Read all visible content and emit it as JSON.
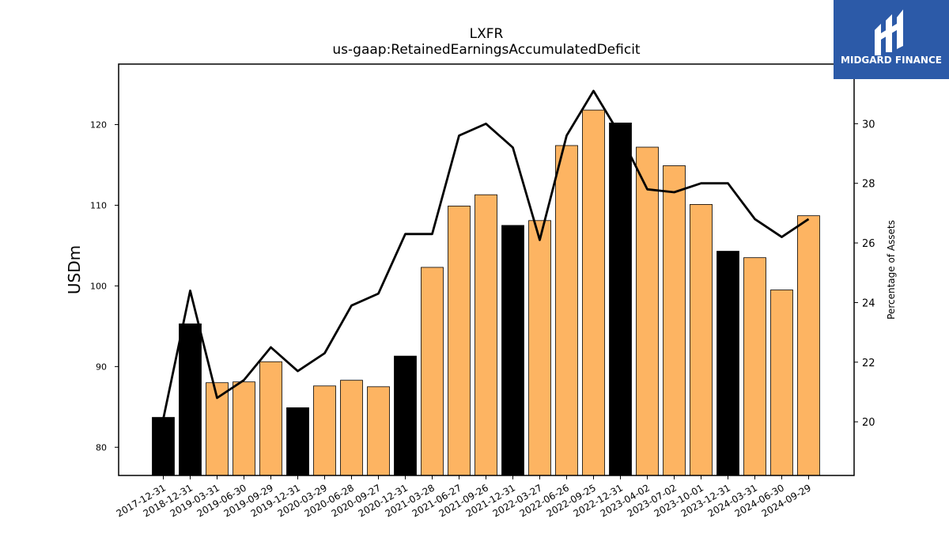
{
  "logo": {
    "text": "MIDGARD FINANCE",
    "color": "#2c5aa8"
  },
  "chart_data": {
    "type": "bar",
    "title": "LXFR",
    "subtitle": "us-gaap:RetainedEarningsAccumulatedDeficit",
    "ylabel": "USDm",
    "y2label": "Percentage of Assets",
    "ylim": [
      76.5,
      127.5
    ],
    "y2lim": [
      18.2,
      32.0
    ],
    "yticks": [
      80,
      90,
      100,
      110,
      120
    ],
    "y2ticks": [
      20,
      22,
      24,
      26,
      28,
      30
    ],
    "grid": false,
    "categories": [
      "2017-12-31",
      "2018-12-31",
      "2019-03-31",
      "2019-06-30",
      "2019-09-29",
      "2019-12-31",
      "2020-03-29",
      "2020-06-28",
      "2020-09-27",
      "2020-12-31",
      "2021-03-28",
      "2021-06-27",
      "2021-09-26",
      "2021-12-31",
      "2022-03-27",
      "2022-06-26",
      "2022-09-25",
      "2022-12-31",
      "2023-04-02",
      "2023-07-02",
      "2023-10-01",
      "2023-12-31",
      "2024-03-31",
      "2024-06-30",
      "2024-09-29"
    ],
    "series": [
      {
        "kind": "bar",
        "values": [
          83.7,
          95.3,
          88.0,
          88.1,
          90.6,
          84.9,
          87.6,
          88.3,
          87.5,
          91.3,
          102.3,
          109.9,
          111.3,
          107.5,
          108.1,
          117.4,
          121.8,
          120.2,
          117.2,
          114.9,
          110.1,
          104.3,
          103.5,
          99.5,
          108.7
        ]
      },
      {
        "kind": "line",
        "axis": "right",
        "color": "#000000",
        "values": [
          20.1,
          24.4,
          20.8,
          21.4,
          22.5,
          21.7,
          22.3,
          23.9,
          24.3,
          26.3,
          26.3,
          29.6,
          30.0,
          29.2,
          26.1,
          29.6,
          31.1,
          29.6,
          27.8,
          27.7,
          28.0,
          28.0,
          26.8,
          26.2,
          26.8
        ]
      }
    ],
    "bar_colors": {
      "quarter": "#fdb462",
      "year_end": "#000000"
    },
    "year_end_flags": [
      true,
      true,
      false,
      false,
      false,
      true,
      false,
      false,
      false,
      true,
      false,
      false,
      false,
      true,
      false,
      false,
      false,
      true,
      false,
      false,
      false,
      true,
      false,
      false,
      false
    ]
  }
}
